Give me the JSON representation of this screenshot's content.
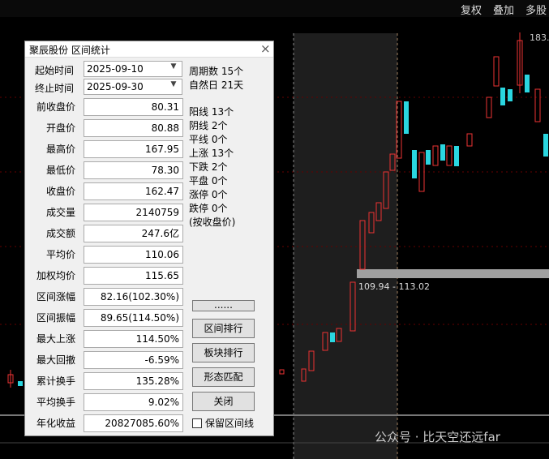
{
  "toolbar": {
    "buttons": [
      "复权",
      "叠加",
      "多股"
    ]
  },
  "chart": {
    "high_label": "183.",
    "range_label": "109.94 - 113.02",
    "watermark": "公众号 · 比天空还远far"
  },
  "dialog": {
    "title": "聚辰股份 区间统计",
    "close": "×",
    "dates": [
      {
        "label": "起始时间",
        "value": "2025-09-10"
      },
      {
        "label": "终止时间",
        "value": "2025-09-30"
      }
    ],
    "period": [
      "周期数 15个",
      "自然日 21天"
    ],
    "rows": [
      [
        "前收盘价",
        "80.31"
      ],
      [
        "开盘价",
        "80.88"
      ],
      [
        "最高价",
        "167.95"
      ],
      [
        "最低价",
        "78.30"
      ],
      [
        "收盘价",
        "162.47"
      ],
      [
        "成交量",
        "2140759"
      ],
      [
        "成交额",
        "247.6亿"
      ],
      [
        "平均价",
        "110.06"
      ],
      [
        "加权均价",
        "115.65"
      ],
      [
        "区间涨幅",
        "82.16(102.30%)"
      ],
      [
        "区间振幅",
        "89.65(114.50%)"
      ],
      [
        "最大上涨",
        "114.50%"
      ],
      [
        "最大回撤",
        "-6.59%"
      ],
      [
        "累计换手",
        "135.28%"
      ],
      [
        "平均换手",
        "9.02%"
      ],
      [
        "年化收益",
        "20827085.60%"
      ]
    ],
    "stats": [
      "阳线 13个",
      "阴线 2个",
      "平线 0个",
      "上涨 13个",
      "下跌 2个",
      "平盘 0个",
      "涨停 0个",
      "跌停 0个",
      "(按收盘价)"
    ],
    "buttons": [
      "......",
      "区间排行",
      "板块排行",
      "形态匹配",
      "关闭"
    ],
    "checkbox": "保留区间线"
  }
}
